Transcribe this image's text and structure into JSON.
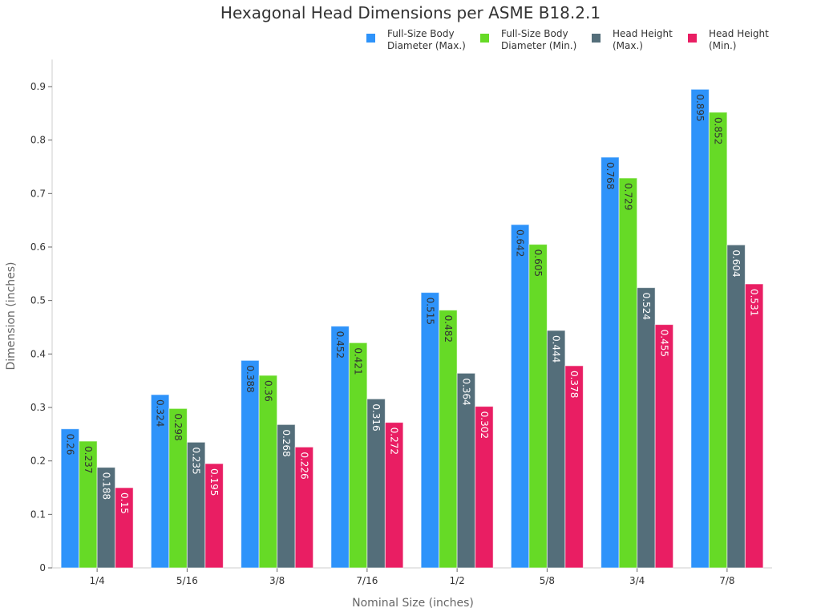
{
  "chart_data": {
    "type": "bar",
    "title": "Hexagonal Head Dimensions per ASME B18.2.1",
    "xlabel": "Nominal Size (inches)",
    "ylabel": "Dimension (inches)",
    "ylim": [
      0,
      0.94
    ],
    "yticks": [
      0,
      0.1,
      0.2,
      0.3,
      0.4,
      0.5,
      0.6,
      0.7,
      0.8,
      0.9
    ],
    "grid": false,
    "legend": "top-right",
    "categories": [
      "1/4",
      "5/16",
      "3/8",
      "7/16",
      "1/2",
      "5/8",
      "3/4",
      "7/8"
    ],
    "series": [
      {
        "name": "Full-Size Body Diameter (Max.)",
        "color": "#2E93FA",
        "label_color": "#333333",
        "values": [
          0.26,
          0.324,
          0.388,
          0.452,
          0.515,
          0.642,
          0.768,
          0.895
        ]
      },
      {
        "name": "Full-Size Body Diameter (Min.)",
        "color": "#66DA26",
        "label_color": "#333333",
        "values": [
          0.237,
          0.298,
          0.36,
          0.421,
          0.482,
          0.605,
          0.729,
          0.852
        ]
      },
      {
        "name": "Head Height (Max.)",
        "color": "#546E7A",
        "label_color": "#ffffff",
        "values": [
          0.188,
          0.235,
          0.268,
          0.316,
          0.364,
          0.444,
          0.524,
          0.604
        ]
      },
      {
        "name": "Head Height (Min.)",
        "color": "#E91E63",
        "label_color": "#ffffff",
        "values": [
          0.15,
          0.195,
          0.226,
          0.272,
          0.302,
          0.378,
          0.455,
          0.531
        ]
      }
    ]
  }
}
